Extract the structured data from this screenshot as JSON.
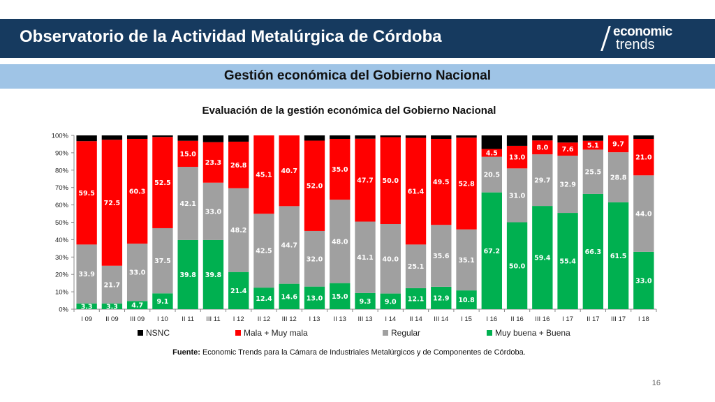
{
  "header": {
    "title": "Observatorio de la Actividad Metalúrgica de Córdoba"
  },
  "logo": {
    "line1": "economic",
    "line2": "trends"
  },
  "subheader": {
    "title": "Gestión económica del Gobierno Nacional"
  },
  "source": {
    "label": "Fuente:",
    "text": " Economic Trends para la Cámara de Industriales Metalúrgicos y de Componentes de Córdoba."
  },
  "page_number": "16",
  "colors": {
    "header": "#163a5f",
    "subheader": "#9fc4e6",
    "nsnc": "#000000",
    "mala": "#ff0000",
    "regular": "#a0a0a0",
    "buena": "#00b050"
  },
  "chart_data": {
    "type": "bar",
    "stacked": true,
    "title": "Evaluación de la gestión económica del Gobierno Nacional",
    "categories": [
      "I 09",
      "II 09",
      "III 09",
      "I 10",
      "II 11",
      "III 11",
      "I 12",
      "II 12",
      "III 12",
      "I 13",
      "II 13",
      "III 13",
      "I 14",
      "II 14",
      "III 14",
      "I 15",
      "I 16",
      "II 16",
      "III 16",
      "I 17",
      "II 17",
      "III 17",
      "I 18"
    ],
    "ylim": [
      0,
      100
    ],
    "yticks": [
      "0%",
      "10%",
      "20%",
      "30%",
      "40%",
      "50%",
      "60%",
      "70%",
      "80%",
      "90%",
      "100%"
    ],
    "legend_position": "bottom",
    "series": [
      {
        "name": "Muy buena + Buena",
        "color": "#00b050",
        "values": [
          3.3,
          3.3,
          4.7,
          9.1,
          39.8,
          39.8,
          21.4,
          12.4,
          14.6,
          13.0,
          15.0,
          9.3,
          9.0,
          12.1,
          12.9,
          10.8,
          67.2,
          50.0,
          59.4,
          55.4,
          66.3,
          61.5,
          33.0
        ],
        "labels": [
          "3.3",
          "3.3",
          "4.7",
          "9.1",
          "39.8",
          "39.8",
          "21.4",
          "12.4",
          "14.6",
          "13.0",
          "15.0",
          "9.3",
          "9.0",
          "12.1",
          "12.9",
          "10.8",
          "67.2",
          "50.0",
          "59.4",
          "55.4",
          "66.3",
          "61.5",
          "33.0"
        ]
      },
      {
        "name": "Regular",
        "color": "#a0a0a0",
        "values": [
          33.9,
          21.7,
          33.0,
          37.5,
          42.1,
          33.0,
          48.2,
          42.5,
          44.7,
          32.0,
          48.0,
          41.1,
          40.0,
          25.1,
          35.6,
          35.1,
          20.5,
          31.0,
          29.7,
          32.9,
          25.5,
          28.8,
          44.0
        ],
        "labels": [
          "33.9",
          "21.7",
          "33.0",
          "37.5",
          "42.1",
          "33.0",
          "48.2",
          "42.5",
          "44.7",
          "32.0",
          "48.0",
          "41.1",
          "40.0",
          "25.1",
          "35.6",
          "35.1",
          "20.5",
          "31.0",
          "29.7",
          "32.9",
          "25.5",
          "28.8",
          "44.0"
        ]
      },
      {
        "name": "Mala + Muy mala",
        "color": "#ff0000",
        "values": [
          59.5,
          72.5,
          60.3,
          52.5,
          15.0,
          23.3,
          26.8,
          45.1,
          40.7,
          52.0,
          35.0,
          47.7,
          50.0,
          61.4,
          49.5,
          52.8,
          4.5,
          13.0,
          8.0,
          7.6,
          5.1,
          9.7,
          21.0
        ],
        "labels": [
          "59.5",
          "72.5",
          "60.3",
          "52.5",
          "15.0",
          "23.3",
          "26.8",
          "45.1",
          "40.7",
          "52.0",
          "35.0",
          "47.7",
          "50.0",
          "61.4",
          "49.5",
          "52.8",
          "4.5",
          "13.0",
          "8.0",
          "7.6",
          "5.1",
          "9.7",
          "21.0"
        ]
      },
      {
        "name": "NSNC",
        "color": "#000000",
        "values": [
          3.3,
          2.5,
          2.0,
          0.9,
          3.1,
          3.9,
          3.6,
          0.0,
          0.0,
          3.0,
          2.0,
          1.9,
          1.0,
          1.4,
          2.0,
          1.3,
          7.8,
          6.0,
          2.9,
          4.1,
          3.1,
          0.0,
          2.0
        ]
      }
    ],
    "legend": [
      {
        "name": "NSNC",
        "color": "#000000"
      },
      {
        "name": "Mala + Muy mala",
        "color": "#ff0000"
      },
      {
        "name": "Regular",
        "color": "#a0a0a0"
      },
      {
        "name": "Muy buena + Buena",
        "color": "#00b050"
      }
    ]
  }
}
